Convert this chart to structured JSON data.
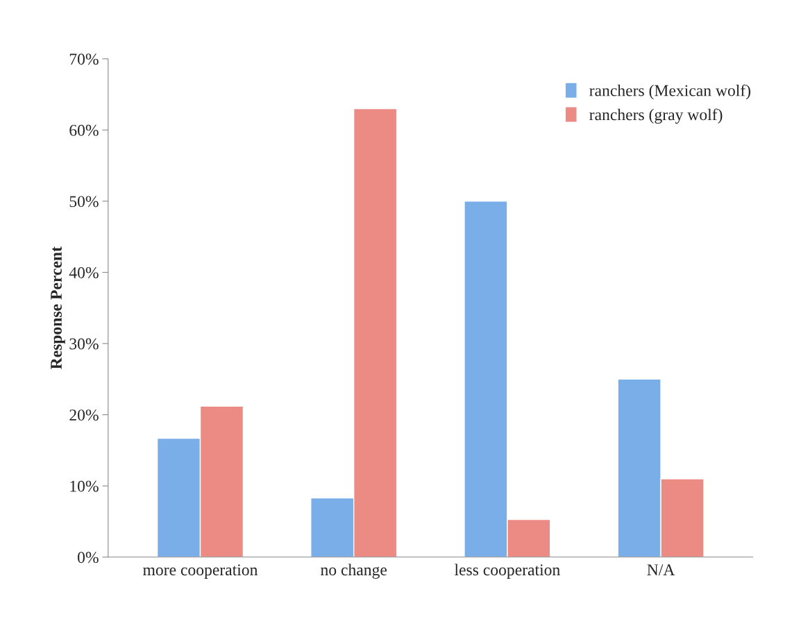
{
  "chart_data": {
    "type": "bar",
    "ylabel": "Response Percent",
    "categories": [
      "more cooperation",
      "no change",
      "less cooperation",
      "N/A"
    ],
    "series": [
      {
        "name": "ranchers (Mexican wolf)",
        "color": "#7aaee8",
        "values": [
          16.7,
          8.3,
          50,
          25
        ]
      },
      {
        "name": "ranchers (gray wolf)",
        "color": "#ec8a84",
        "values": [
          21.2,
          63,
          5.3,
          11
        ]
      }
    ],
    "ylim": [
      0,
      70
    ],
    "yticks": [
      {
        "value": 0,
        "label": "0%"
      },
      {
        "value": 10,
        "label": "10%"
      },
      {
        "value": 20,
        "label": "20%"
      },
      {
        "value": 30,
        "label": "30%"
      },
      {
        "value": 40,
        "label": "40%"
      },
      {
        "value": 50,
        "label": "50%"
      },
      {
        "value": 60,
        "label": "60%"
      },
      {
        "value": 70,
        "label": "70%"
      }
    ],
    "grid": false,
    "legend": "top right"
  }
}
